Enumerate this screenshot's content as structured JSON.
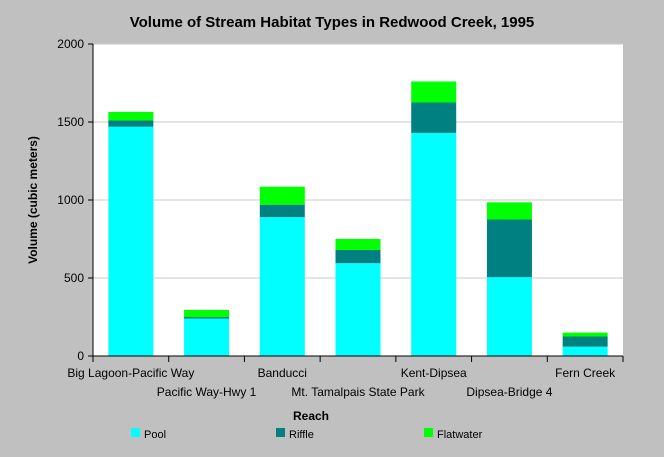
{
  "chart_data": {
    "type": "bar",
    "stacked": true,
    "title": "Volume of Stream Habitat Types in Redwood Creek, 1995",
    "xlabel": "Reach",
    "ylabel": "Volume (cubic meters)",
    "ylim": [
      0,
      2000
    ],
    "yticks": [
      "0",
      "500",
      "1000",
      "1500",
      "2000"
    ],
    "grid": true,
    "legend_position": "bottom",
    "categories": [
      "Big Lagoon-Pacific Way",
      "Pacific Way-Hwy 1",
      "Banducci",
      "Mt. Tamalpais State Park",
      "Kent-Dipsea",
      "Dipsea-Bridge 4",
      "Fern Creek"
    ],
    "series": [
      {
        "name": "Pool",
        "color": "#00ffff",
        "values": [
          1470,
          240,
          890,
          595,
          1430,
          505,
          60
        ]
      },
      {
        "name": "Riffle",
        "color": "#008080",
        "values": [
          40,
          10,
          80,
          85,
          195,
          370,
          65
        ]
      },
      {
        "name": "Flatwater",
        "color": "#00ff00",
        "values": [
          55,
          45,
          115,
          70,
          135,
          110,
          25
        ]
      }
    ]
  }
}
